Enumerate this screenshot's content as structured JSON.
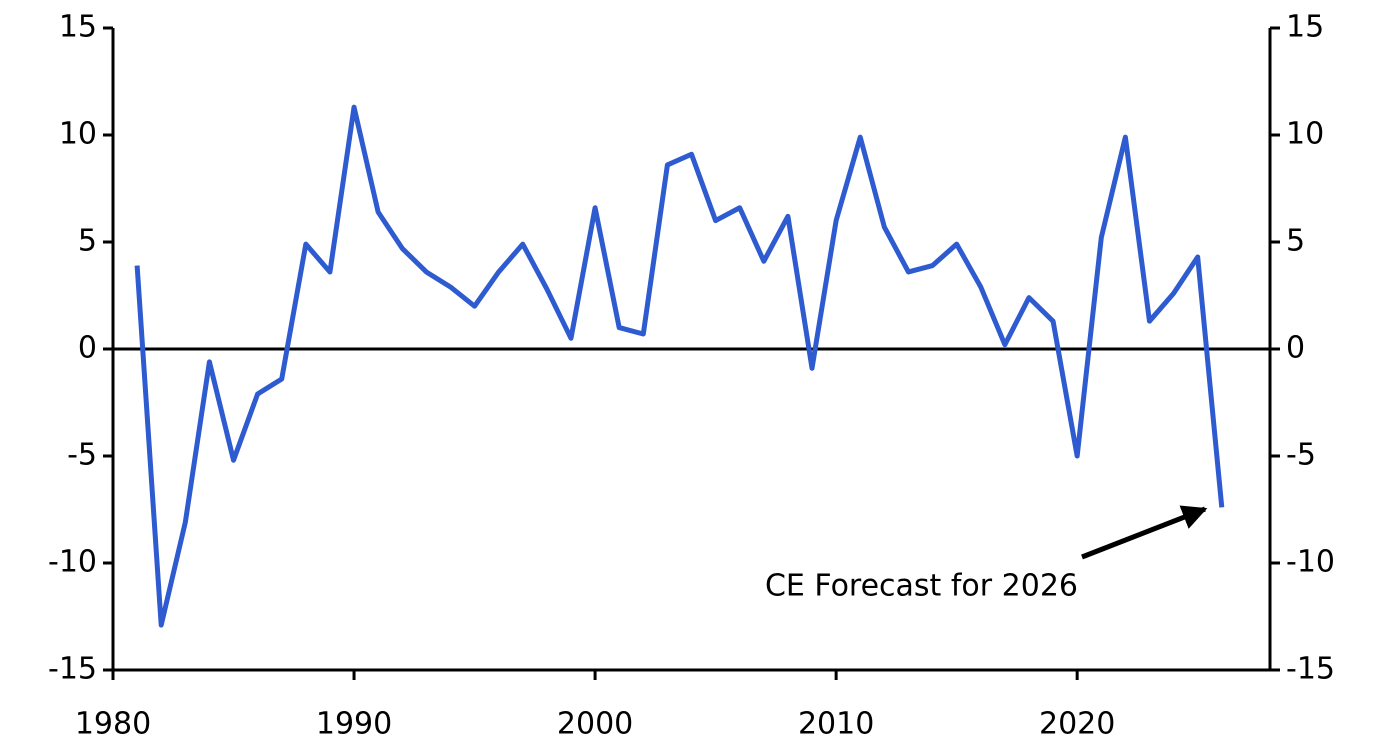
{
  "chart_data": {
    "type": "line",
    "annotation": "CE Forecast for 2026",
    "x": [
      1981,
      1982,
      1983,
      1984,
      1985,
      1986,
      1987,
      1988,
      1989,
      1990,
      1991,
      1992,
      1993,
      1994,
      1995,
      1996,
      1997,
      1998,
      1999,
      2000,
      2001,
      2002,
      2003,
      2004,
      2005,
      2006,
      2007,
      2008,
      2009,
      2010,
      2011,
      2012,
      2013,
      2014,
      2015,
      2016,
      2017,
      2018,
      2019,
      2020,
      2021,
      2022,
      2023,
      2024,
      2025,
      2026
    ],
    "series": [
      {
        "color": "#2e5bd0",
        "values": [
          3.9,
          -12.9,
          -8.1,
          -0.6,
          -5.2,
          -2.1,
          -1.4,
          4.9,
          3.6,
          11.3,
          6.4,
          4.7,
          3.6,
          2.9,
          2.0,
          3.6,
          4.9,
          2.8,
          0.5,
          6.6,
          1.0,
          0.7,
          8.6,
          9.1,
          6.0,
          6.6,
          4.1,
          6.2,
          -0.9,
          6.0,
          9.9,
          5.7,
          3.6,
          3.9,
          4.9,
          2.9,
          0.2,
          2.4,
          1.3,
          -5.0,
          5.2,
          9.9,
          1.3,
          2.6,
          4.3,
          -7.4
        ]
      }
    ],
    "xlim": [
      1980,
      2028
    ],
    "xticks": [
      1980,
      1990,
      2000,
      2010,
      2020
    ],
    "ylim": [
      -15,
      15
    ],
    "yticks": [
      -15,
      -10,
      -5,
      0,
      5,
      10,
      15
    ],
    "y2lim": [
      -15,
      15
    ],
    "y2ticks": [
      -15,
      -10,
      -5,
      0,
      5,
      10,
      15
    ]
  }
}
